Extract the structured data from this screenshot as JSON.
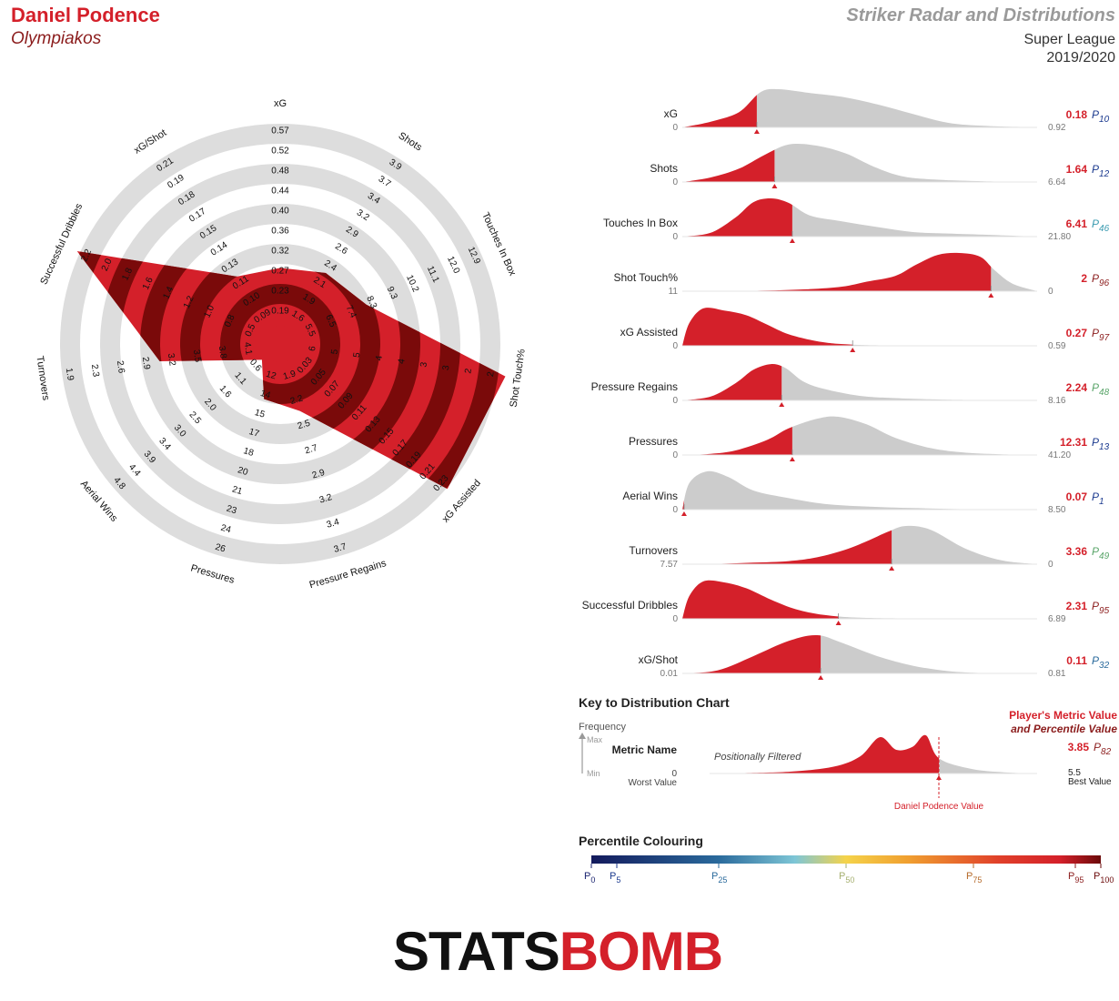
{
  "header": {
    "player_name": "Daniel Podence",
    "team": "Olympiakos",
    "report_title": "Striker Radar and Distributions",
    "league": "Super League",
    "season": "2019/2020"
  },
  "colors": {
    "accent": "#d4202a",
    "dark_red": "#7a0a0a",
    "ring_grey": "#dddddd",
    "dist_grey": "#cccccc"
  },
  "chart_data": [
    {
      "type": "radar",
      "axes": [
        {
          "name": "xG",
          "ticks": [
            "0.19",
            "0.23",
            "0.27",
            "0.32",
            "0.36",
            "0.40",
            "0.44",
            "0.48",
            "0.52",
            "0.57"
          ],
          "fraction": 0.27
        },
        {
          "name": "Shots",
          "ticks": [
            "1.6",
            "1.9",
            "2.1",
            "2.4",
            "2.6",
            "2.9",
            "3.2",
            "3.4",
            "3.7",
            "3.9"
          ],
          "fraction": 0.31
        },
        {
          "name": "Touches In Box",
          "ticks": [
            "5.5",
            "6.5",
            "7.4",
            "8.3",
            "9.3",
            "10.2",
            "11.1",
            "12.0",
            "12.9"
          ],
          "fraction": 0.36
        },
        {
          "name": "Shot Touch%",
          "ticks": [
            "6",
            "5",
            "5",
            "4",
            "4",
            "3",
            "3",
            "2",
            "2"
          ],
          "fraction": 1.0
        },
        {
          "name": "xG Assisted",
          "ticks": [
            "0.03",
            "0.05",
            "0.07",
            "0.09",
            "0.11",
            "0.13",
            "0.15",
            "0.17",
            "0.19",
            "0.21",
            "0.23"
          ],
          "fraction": 0.97
        },
        {
          "name": "Pressure Regains",
          "ticks": [
            "1.9",
            "2.2",
            "2.5",
            "2.7",
            "2.9",
            "3.2",
            "3.4",
            "3.7"
          ],
          "fraction": 0.24
        },
        {
          "name": "Pressures",
          "ticks": [
            "12",
            "14",
            "15",
            "17",
            "18",
            "20",
            "21",
            "23",
            "24",
            "26"
          ],
          "fraction": 0.18
        },
        {
          "name": "Aerial Wins",
          "ticks": [
            "0.6",
            "1.1",
            "1.6",
            "2.0",
            "2.5",
            "3.0",
            "3.4",
            "3.9",
            "4.4",
            "4.8"
          ],
          "fraction": 0.02
        },
        {
          "name": "Turnovers",
          "ticks": [
            "4.1",
            "3.8",
            "3.5",
            "3.2",
            "2.9",
            "2.6",
            "2.3",
            "1.9"
          ],
          "fraction": 0.49
        },
        {
          "name": "Successful Dribbles",
          "ticks": [
            "0.5",
            "0.8",
            "1.0",
            "1.2",
            "1.4",
            "1.6",
            "1.8",
            "2.0",
            "2.2"
          ],
          "fraction": 0.98
        },
        {
          "name": "xG/Shot",
          "ticks": [
            "0.09",
            "0.10",
            "0.11",
            "0.13",
            "0.14",
            "0.15",
            "0.17",
            "0.18",
            "0.19",
            "0.21"
          ],
          "fraction": 0.29
        }
      ]
    },
    {
      "type": "area",
      "title": "Distributions",
      "metrics": [
        {
          "name": "xG",
          "worst": "0",
          "best": "0.92",
          "value": "0.18",
          "percentile": "10",
          "pcolor": "#1b3a8f",
          "cut": 0.21,
          "reversed": false,
          "peaks": [
            [
              0.0,
              0.0
            ],
            [
              0.08,
              0.15
            ],
            [
              0.16,
              0.4
            ],
            [
              0.22,
              0.92
            ],
            [
              0.27,
              1.0
            ],
            [
              0.36,
              0.9
            ],
            [
              0.45,
              0.8
            ],
            [
              0.55,
              0.6
            ],
            [
              0.65,
              0.35
            ],
            [
              0.75,
              0.12
            ],
            [
              0.85,
              0.04
            ],
            [
              1.0,
              0.0
            ]
          ]
        },
        {
          "name": "Shots",
          "worst": "0",
          "best": "6.64",
          "value": "1.64",
          "percentile": "12",
          "pcolor": "#1b3a8f",
          "cut": 0.26,
          "reversed": false,
          "peaks": [
            [
              0.0,
              0.0
            ],
            [
              0.08,
              0.12
            ],
            [
              0.16,
              0.35
            ],
            [
              0.23,
              0.7
            ],
            [
              0.3,
              0.98
            ],
            [
              0.38,
              0.95
            ],
            [
              0.46,
              0.75
            ],
            [
              0.54,
              0.4
            ],
            [
              0.62,
              0.15
            ],
            [
              0.72,
              0.06
            ],
            [
              0.85,
              0.02
            ],
            [
              1.0,
              0.0
            ]
          ]
        },
        {
          "name": "Touches In Box",
          "worst": "0",
          "best": "21.80",
          "value": "6.41",
          "percentile": "46",
          "pcolor": "#3a9bb0",
          "cut": 0.31,
          "reversed": false,
          "peaks": [
            [
              0.0,
              0.0
            ],
            [
              0.08,
              0.1
            ],
            [
              0.15,
              0.5
            ],
            [
              0.2,
              0.9
            ],
            [
              0.25,
              1.0
            ],
            [
              0.3,
              0.88
            ],
            [
              0.36,
              0.55
            ],
            [
              0.45,
              0.4
            ],
            [
              0.55,
              0.25
            ],
            [
              0.65,
              0.12
            ],
            [
              0.75,
              0.08
            ],
            [
              0.85,
              0.05
            ],
            [
              1.0,
              0.0
            ]
          ]
        },
        {
          "name": "Shot Touch%",
          "worst": "11",
          "best": "0",
          "value": "2",
          "percentile": "96",
          "pcolor": "#8b1c1c",
          "cut": 0.87,
          "reversed": true,
          "peaks": [
            [
              0.0,
              0.0
            ],
            [
              0.2,
              0.01
            ],
            [
              0.35,
              0.05
            ],
            [
              0.45,
              0.12
            ],
            [
              0.52,
              0.25
            ],
            [
              0.6,
              0.4
            ],
            [
              0.66,
              0.7
            ],
            [
              0.72,
              0.95
            ],
            [
              0.78,
              1.0
            ],
            [
              0.84,
              0.9
            ],
            [
              0.88,
              0.55
            ],
            [
              0.93,
              0.2
            ],
            [
              1.0,
              0.0
            ]
          ]
        },
        {
          "name": "xG Assisted",
          "worst": "0",
          "best": "0.59",
          "value": "0.27",
          "percentile": "97",
          "pcolor": "#8b1c1c",
          "cut": 0.48,
          "reversed": false,
          "peaks": [
            [
              0.0,
              0.0
            ],
            [
              0.02,
              0.6
            ],
            [
              0.06,
              0.98
            ],
            [
              0.12,
              0.92
            ],
            [
              0.18,
              0.8
            ],
            [
              0.24,
              0.55
            ],
            [
              0.3,
              0.3
            ],
            [
              0.38,
              0.12
            ],
            [
              0.46,
              0.04
            ],
            [
              0.6,
              0.01
            ],
            [
              1.0,
              0.0
            ]
          ]
        },
        {
          "name": "Pressure Regains",
          "worst": "0",
          "best": "8.16",
          "value": "2.24",
          "percentile": "48",
          "pcolor": "#5aa56a",
          "cut": 0.28,
          "reversed": false,
          "peaks": [
            [
              0.0,
              0.0
            ],
            [
              0.08,
              0.1
            ],
            [
              0.15,
              0.45
            ],
            [
              0.2,
              0.8
            ],
            [
              0.25,
              0.95
            ],
            [
              0.29,
              0.85
            ],
            [
              0.34,
              0.5
            ],
            [
              0.4,
              0.3
            ],
            [
              0.5,
              0.12
            ],
            [
              0.6,
              0.06
            ],
            [
              0.75,
              0.02
            ],
            [
              1.0,
              0.0
            ]
          ]
        },
        {
          "name": "Pressures",
          "worst": "0",
          "best": "41.20",
          "value": "12.31",
          "percentile": "13",
          "pcolor": "#1b3a8f",
          "cut": 0.31,
          "reversed": false,
          "peaks": [
            [
              0.0,
              0.0
            ],
            [
              0.08,
              0.03
            ],
            [
              0.15,
              0.12
            ],
            [
              0.24,
              0.4
            ],
            [
              0.3,
              0.7
            ],
            [
              0.38,
              0.95
            ],
            [
              0.44,
              1.0
            ],
            [
              0.52,
              0.8
            ],
            [
              0.6,
              0.45
            ],
            [
              0.7,
              0.18
            ],
            [
              0.8,
              0.06
            ],
            [
              0.9,
              0.02
            ],
            [
              1.0,
              0.0
            ]
          ]
        },
        {
          "name": "Aerial Wins",
          "worst": "0",
          "best": "8.50",
          "value": "0.07",
          "percentile": "1",
          "pcolor": "#1b3a8f",
          "cut": 0.005,
          "reversed": false,
          "peaks": [
            [
              0.0,
              0.0
            ],
            [
              0.02,
              0.7
            ],
            [
              0.07,
              1.0
            ],
            [
              0.13,
              0.85
            ],
            [
              0.2,
              0.5
            ],
            [
              0.3,
              0.3
            ],
            [
              0.4,
              0.15
            ],
            [
              0.52,
              0.08
            ],
            [
              0.65,
              0.04
            ],
            [
              0.8,
              0.01
            ],
            [
              1.0,
              0.0
            ]
          ]
        },
        {
          "name": "Turnovers",
          "worst": "7.57",
          "best": "0",
          "value": "3.36",
          "percentile": "49",
          "pcolor": "#5aa56a",
          "cut": 0.59,
          "reversed": true,
          "peaks": [
            [
              0.0,
              0.0
            ],
            [
              0.1,
              0.01
            ],
            [
              0.2,
              0.04
            ],
            [
              0.3,
              0.08
            ],
            [
              0.38,
              0.18
            ],
            [
              0.46,
              0.38
            ],
            [
              0.52,
              0.6
            ],
            [
              0.58,
              0.85
            ],
            [
              0.63,
              1.0
            ],
            [
              0.7,
              0.9
            ],
            [
              0.8,
              0.4
            ],
            [
              0.9,
              0.1
            ],
            [
              1.0,
              0.0
            ]
          ]
        },
        {
          "name": "Successful Dribbles",
          "worst": "0",
          "best": "6.89",
          "value": "2.31",
          "percentile": "95",
          "pcolor": "#8b1c1c",
          "cut": 0.44,
          "reversed": false,
          "peaks": [
            [
              0.0,
              0.0
            ],
            [
              0.02,
              0.6
            ],
            [
              0.06,
              0.98
            ],
            [
              0.12,
              0.95
            ],
            [
              0.18,
              0.8
            ],
            [
              0.25,
              0.5
            ],
            [
              0.32,
              0.25
            ],
            [
              0.4,
              0.1
            ],
            [
              0.5,
              0.03
            ],
            [
              0.7,
              0.01
            ],
            [
              1.0,
              0.0
            ]
          ]
        },
        {
          "name": "xG/Shot",
          "worst": "0.01",
          "best": "0.81",
          "value": "0.11",
          "percentile": "32",
          "pcolor": "#2a6a9c",
          "cut": 0.39,
          "reversed": false,
          "peaks": [
            [
              0.0,
              0.0
            ],
            [
              0.1,
              0.08
            ],
            [
              0.2,
              0.45
            ],
            [
              0.3,
              0.85
            ],
            [
              0.38,
              1.0
            ],
            [
              0.45,
              0.8
            ],
            [
              0.55,
              0.45
            ],
            [
              0.65,
              0.2
            ],
            [
              0.75,
              0.06
            ],
            [
              0.85,
              0.01
            ],
            [
              1.0,
              0.0
            ]
          ]
        }
      ]
    },
    {
      "type": "area",
      "title": "Key to Distribution Chart",
      "y_axis": "Frequency",
      "y_max": "Max",
      "y_min": "Min",
      "metric_label": "Metric Name",
      "filter_note": "Positionally Filtered",
      "worst_value": "0",
      "worst_label": "Worst Value",
      "best_value": "5.5",
      "best_label": "Best Value",
      "player_value_label_1": "Player's Metric Value",
      "player_value_label_2": "and Percentile Value",
      "value": "3.85",
      "percentile": "82",
      "marker_label": "Daniel Podence Value",
      "cut": 0.7,
      "peaks": [
        [
          0.0,
          0.0
        ],
        [
          0.1,
          0.01
        ],
        [
          0.25,
          0.05
        ],
        [
          0.38,
          0.18
        ],
        [
          0.46,
          0.45
        ],
        [
          0.52,
          0.95
        ],
        [
          0.57,
          0.62
        ],
        [
          0.62,
          0.7
        ],
        [
          0.66,
          1.0
        ],
        [
          0.7,
          0.4
        ],
        [
          0.8,
          0.12
        ],
        [
          0.9,
          0.03
        ],
        [
          1.0,
          0.0
        ]
      ]
    }
  ],
  "percentile_scale": {
    "title": "Percentile Colouring",
    "prefix": "P",
    "ticks": [
      {
        "p": "0",
        "value": 0,
        "color": "#1b2470"
      },
      {
        "p": "5",
        "value": 5,
        "color": "#1b3a8f"
      },
      {
        "p": "25",
        "value": 25,
        "color": "#2a6a9c"
      },
      {
        "p": "50",
        "value": 50,
        "color": "#a6b070"
      },
      {
        "p": "75",
        "value": 75,
        "color": "#b56a2a"
      },
      {
        "p": "95",
        "value": 95,
        "color": "#8b1c1c"
      },
      {
        "p": "100",
        "value": 100,
        "color": "#6b0a0a"
      }
    ]
  },
  "logo": {
    "part1": "STATS",
    "part2": "BOMB"
  }
}
